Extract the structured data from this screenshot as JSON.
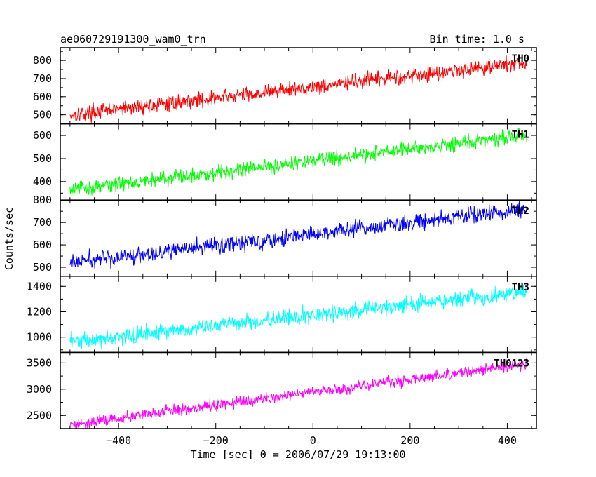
{
  "header": {
    "title": "ae060729191300_wam0_trn",
    "bin_time": "Bin time: 1.0 s"
  },
  "chart_data": {
    "type": "line",
    "title": "ae060729191300_wam0_trn",
    "subtitle": "Bin time: 1.0 s",
    "xlabel": "Time [sec] 0 = 2006/07/29 19:13:00",
    "ylabel": "Counts/sec",
    "xlim": [
      -520,
      460
    ],
    "x_ticks": [
      -400,
      -200,
      0,
      200,
      400
    ],
    "x_tick_labels": [
      "−400",
      "−200",
      "0",
      "200",
      "400"
    ],
    "x_range": [
      -500,
      440
    ],
    "bin_time_s": 1.0,
    "grid": false,
    "series": [
      {
        "name": "TH0",
        "color": "#ff0000",
        "ylim": [
          450,
          870
        ],
        "y_ticks": [
          500,
          600,
          700,
          800
        ],
        "trend_start": 500,
        "trend_end": 790,
        "noise_amplitude": 45
      },
      {
        "name": "TH1",
        "color": "#00ff00",
        "ylim": [
          320,
          650
        ],
        "y_ticks": [
          400,
          500,
          600
        ],
        "trend_start": 365,
        "trend_end": 600,
        "noise_amplitude": 35
      },
      {
        "name": "TH2",
        "color": "#0000ff",
        "ylim": [
          460,
          800
        ],
        "y_ticks": [
          500,
          600,
          700,
          800
        ],
        "trend_start": 520,
        "trend_end": 760,
        "noise_amplitude": 40
      },
      {
        "name": "TH3",
        "color": "#00ffff",
        "ylim": [
          880,
          1480
        ],
        "y_ticks": [
          1000,
          1200,
          1400
        ],
        "trend_start": 960,
        "trend_end": 1360,
        "noise_amplitude": 70
      },
      {
        "name": "TH0123",
        "color": "#ff00ff",
        "ylim": [
          2250,
          3700
        ],
        "y_ticks": [
          2500,
          3000,
          3500
        ],
        "trend_start": 2330,
        "trend_end": 3480,
        "noise_amplitude": 120
      }
    ]
  }
}
